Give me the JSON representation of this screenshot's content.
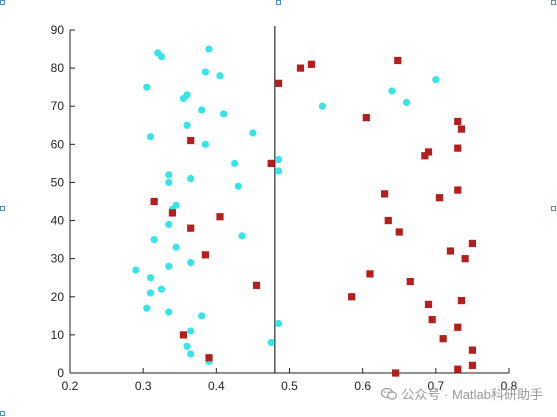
{
  "watermark": {
    "text": "公众号 · Matlab科研助手",
    "icon": "wechat-icon"
  },
  "colors": {
    "class_a": "#36e4ea",
    "class_b": "#b21f1c",
    "boundary": "#000000",
    "axis": "#222222",
    "handle": "#4a8fd4"
  },
  "chart_data": {
    "type": "scatter",
    "title": "",
    "xlabel": "",
    "ylabel": "",
    "xlim": [
      0.2,
      0.8
    ],
    "ylim": [
      0,
      90
    ],
    "xticks": [
      "0.2",
      "0.3",
      "0.4",
      "0.5",
      "0.6",
      "0.7",
      "0.8"
    ],
    "yticks": [
      "0",
      "10",
      "20",
      "30",
      "40",
      "50",
      "60",
      "70",
      "80",
      "90"
    ],
    "grid": false,
    "legend": "none",
    "boundary_x": 0.48,
    "series": [
      {
        "marker": "circle",
        "color": "#36e4ea",
        "points": [
          [
            0.32,
            84
          ],
          [
            0.325,
            83
          ],
          [
            0.39,
            85
          ],
          [
            0.385,
            79
          ],
          [
            0.405,
            78
          ],
          [
            0.305,
            75
          ],
          [
            0.355,
            72
          ],
          [
            0.36,
            73
          ],
          [
            0.38,
            69
          ],
          [
            0.41,
            68
          ],
          [
            0.36,
            65
          ],
          [
            0.31,
            62
          ],
          [
            0.385,
            60
          ],
          [
            0.45,
            63
          ],
          [
            0.425,
            55
          ],
          [
            0.335,
            52
          ],
          [
            0.365,
            51
          ],
          [
            0.335,
            50
          ],
          [
            0.43,
            49
          ],
          [
            0.485,
            56
          ],
          [
            0.485,
            53
          ],
          [
            0.345,
            44
          ],
          [
            0.34,
            43
          ],
          [
            0.335,
            39
          ],
          [
            0.315,
            35
          ],
          [
            0.345,
            33
          ],
          [
            0.435,
            36
          ],
          [
            0.365,
            29
          ],
          [
            0.335,
            28
          ],
          [
            0.29,
            27
          ],
          [
            0.31,
            25
          ],
          [
            0.325,
            22
          ],
          [
            0.31,
            21
          ],
          [
            0.305,
            17
          ],
          [
            0.335,
            16
          ],
          [
            0.38,
            15
          ],
          [
            0.365,
            11
          ],
          [
            0.485,
            13
          ],
          [
            0.475,
            8
          ],
          [
            0.36,
            7
          ],
          [
            0.365,
            5
          ],
          [
            0.39,
            3
          ],
          [
            0.545,
            70
          ],
          [
            0.64,
            74
          ],
          [
            0.66,
            71
          ],
          [
            0.7,
            77
          ]
        ]
      },
      {
        "marker": "square",
        "color": "#b21f1c",
        "points": [
          [
            0.515,
            80
          ],
          [
            0.53,
            81
          ],
          [
            0.485,
            76
          ],
          [
            0.648,
            82
          ],
          [
            0.605,
            67
          ],
          [
            0.365,
            61
          ],
          [
            0.475,
            55
          ],
          [
            0.73,
            66
          ],
          [
            0.735,
            64
          ],
          [
            0.69,
            58
          ],
          [
            0.685,
            57
          ],
          [
            0.73,
            59
          ],
          [
            0.63,
            47
          ],
          [
            0.73,
            48
          ],
          [
            0.315,
            45
          ],
          [
            0.34,
            42
          ],
          [
            0.405,
            41
          ],
          [
            0.365,
            38
          ],
          [
            0.635,
            40
          ],
          [
            0.65,
            37
          ],
          [
            0.705,
            46
          ],
          [
            0.75,
            34
          ],
          [
            0.72,
            32
          ],
          [
            0.74,
            30
          ],
          [
            0.385,
            31
          ],
          [
            0.455,
            23
          ],
          [
            0.61,
            26
          ],
          [
            0.665,
            24
          ],
          [
            0.585,
            20
          ],
          [
            0.69,
            18
          ],
          [
            0.735,
            19
          ],
          [
            0.695,
            14
          ],
          [
            0.73,
            12
          ],
          [
            0.71,
            9
          ],
          [
            0.355,
            10
          ],
          [
            0.39,
            4
          ],
          [
            0.75,
            6
          ],
          [
            0.75,
            2
          ],
          [
            0.73,
            1
          ],
          [
            0.645,
            0
          ]
        ]
      }
    ]
  }
}
